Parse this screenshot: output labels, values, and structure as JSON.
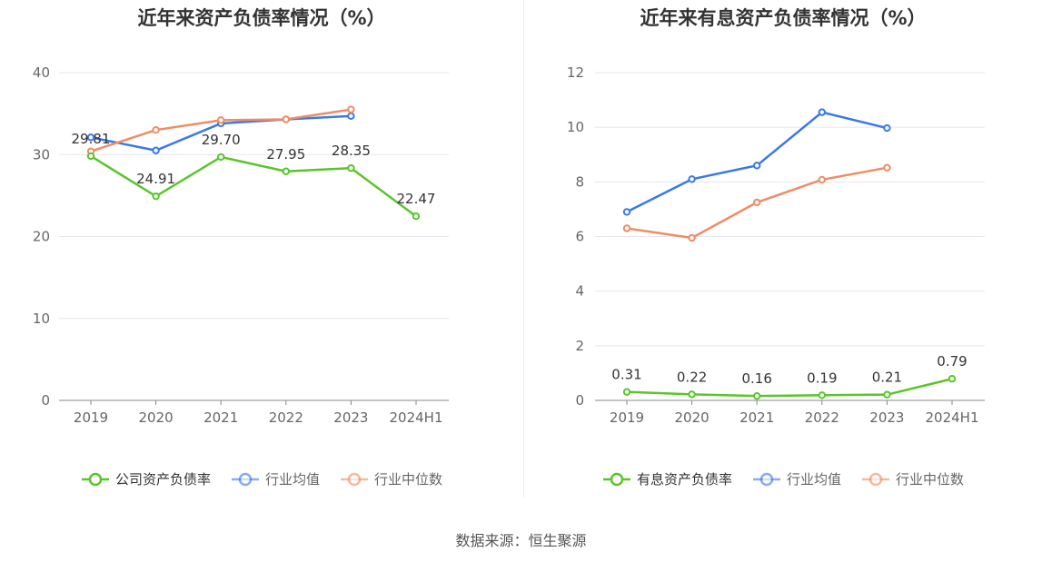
{
  "source": "数据来源：恒生聚源",
  "chart_data": [
    {
      "type": "line",
      "title": "近年来资产负债率情况（%）",
      "categories": [
        "2019",
        "2020",
        "2021",
        "2022",
        "2023",
        "2024H1"
      ],
      "ylim": [
        0,
        40
      ],
      "yticks": [
        0,
        10,
        20,
        30,
        40
      ],
      "grid": true,
      "legend_position": "bottom-center",
      "series": [
        {
          "name": "公司资产负债率",
          "color": "#5ac52b",
          "values": [
            29.81,
            24.91,
            29.7,
            27.95,
            28.35,
            22.47
          ],
          "labels": [
            "29.81",
            "24.91",
            "29.70",
            "27.95",
            "28.35",
            "22.47"
          ]
        },
        {
          "name": "行业均值",
          "color": "#3b78e7",
          "values": [
            32.1,
            30.5,
            33.8,
            34.3,
            34.7,
            null
          ]
        },
        {
          "name": "行业中位数",
          "color": "#f08c64",
          "values": [
            30.4,
            33.0,
            34.2,
            34.3,
            35.5,
            null
          ]
        }
      ]
    },
    {
      "type": "line",
      "title": "近年来有息资产负债率情况（%）",
      "categories": [
        "2019",
        "2020",
        "2021",
        "2022",
        "2023",
        "2024H1"
      ],
      "ylim": [
        0,
        12
      ],
      "yticks": [
        0,
        2,
        4,
        6,
        8,
        10,
        12
      ],
      "grid": true,
      "legend_position": "bottom-center",
      "series": [
        {
          "name": "有息资产负债率",
          "color": "#5ac52b",
          "values": [
            0.31,
            0.22,
            0.16,
            0.19,
            0.21,
            0.79
          ],
          "labels": [
            "0.31",
            "0.22",
            "0.16",
            "0.19",
            "0.21",
            "0.79"
          ]
        },
        {
          "name": "行业均值",
          "color": "#3b78e7",
          "values": [
            6.9,
            8.1,
            8.6,
            10.55,
            9.97,
            null
          ]
        },
        {
          "name": "行业中位数",
          "color": "#f08c64",
          "values": [
            6.3,
            5.95,
            7.25,
            8.08,
            8.52,
            null
          ]
        }
      ]
    }
  ]
}
